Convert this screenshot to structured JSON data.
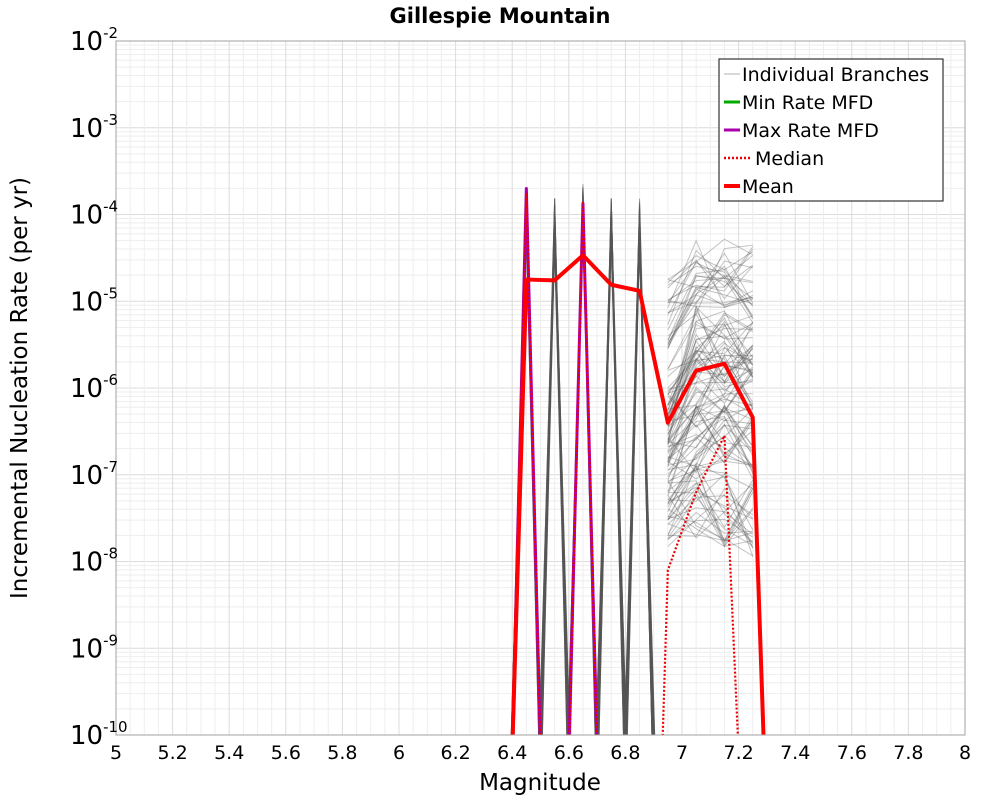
{
  "chart_data": {
    "type": "line",
    "title": "Gillespie Mountain",
    "xlabel": "Magnitude",
    "ylabel": "Incremental Nucleation Rate (per yr)",
    "xlim": [
      5,
      8
    ],
    "ylim_log10": [
      -10,
      -2
    ],
    "x_ticks": [
      {
        "value": 5.0,
        "label": "5"
      },
      {
        "value": 5.2,
        "label": "5.2"
      },
      {
        "value": 5.4,
        "label": "5.4"
      },
      {
        "value": 5.6,
        "label": "5.6"
      },
      {
        "value": 5.8,
        "label": "5.8"
      },
      {
        "value": 6.0,
        "label": "6"
      },
      {
        "value": 6.2,
        "label": "6.2"
      },
      {
        "value": 6.4,
        "label": "6.4"
      },
      {
        "value": 6.6,
        "label": "6.6"
      },
      {
        "value": 6.8,
        "label": "6.8"
      },
      {
        "value": 7.0,
        "label": "7"
      },
      {
        "value": 7.2,
        "label": "7.2"
      },
      {
        "value": 7.4,
        "label": "7.4"
      },
      {
        "value": 7.6,
        "label": "7.6"
      },
      {
        "value": 7.8,
        "label": "7.8"
      },
      {
        "value": 8.0,
        "label": "8"
      }
    ],
    "y_ticks": [
      {
        "exp": -2,
        "base": "10",
        "sup": "-2"
      },
      {
        "exp": -3,
        "base": "10",
        "sup": "-3"
      },
      {
        "exp": -4,
        "base": "10",
        "sup": "-4"
      },
      {
        "exp": -5,
        "base": "10",
        "sup": "-5"
      },
      {
        "exp": -6,
        "base": "10",
        "sup": "-6"
      },
      {
        "exp": -7,
        "base": "10",
        "sup": "-7"
      },
      {
        "exp": -8,
        "base": "10",
        "sup": "-8"
      },
      {
        "exp": -9,
        "base": "10",
        "sup": "-9"
      },
      {
        "exp": -10,
        "base": "10",
        "sup": "-10"
      }
    ],
    "grid": true,
    "legend": {
      "placement": "top-right",
      "entries": [
        {
          "label": "Individual Branches",
          "color": "#b0b0b0",
          "style": "thin"
        },
        {
          "label": "Min Rate MFD",
          "color": "#00aa00",
          "style": "solid"
        },
        {
          "label": "Max Rate MFD",
          "color": "#aa00aa",
          "style": "solid"
        },
        {
          "label": "Median",
          "color": "#ee0000",
          "style": "dotted"
        },
        {
          "label": "Mean",
          "color": "#ff0000",
          "style": "thick"
        }
      ]
    },
    "series": [
      {
        "name": "Individual Branches",
        "color": "#555555",
        "representative_curves_log10": [
          {
            "x": [
              6.4,
              6.45,
              6.5
            ],
            "y": [
              -10.2,
              -3.7,
              -10.2
            ]
          },
          {
            "x": [
              6.5,
              6.55,
              6.6
            ],
            "y": [
              -10.2,
              -3.8,
              -10.2
            ]
          },
          {
            "x": [
              6.6,
              6.65,
              6.7
            ],
            "y": [
              -10.2,
              -3.65,
              -10.2
            ]
          },
          {
            "x": [
              6.7,
              6.75,
              6.8
            ],
            "y": [
              -10.2,
              -3.8,
              -10.2
            ]
          },
          {
            "x": [
              6.8,
              6.85,
              6.9
            ],
            "y": [
              -10.2,
              -3.8,
              -10.2
            ]
          },
          {
            "x": [
              6.95,
              7.05,
              7.15,
              7.25
            ],
            "y": [
              -5.1,
              -4.7,
              -4.7,
              -4.8
            ]
          },
          {
            "x": [
              6.95,
              7.05,
              7.15,
              7.25
            ],
            "y": [
              -6.2,
              -5.5,
              -5.5,
              -5.5
            ]
          },
          {
            "x": [
              6.95,
              7.05,
              7.15,
              7.25
            ],
            "y": [
              -6.5,
              -6.0,
              -5.9,
              -5.9
            ]
          },
          {
            "x": [
              6.95,
              7.05,
              7.15,
              7.25
            ],
            "y": [
              -7.0,
              -6.6,
              -6.5,
              -6.6
            ]
          },
          {
            "x": [
              6.95,
              7.05,
              7.15,
              7.25
            ],
            "y": [
              -7.5,
              -7.3,
              -7.4,
              -7.5
            ]
          }
        ]
      },
      {
        "name": "Max Rate MFD",
        "color": "#aa00aa",
        "x": [
          6.4,
          6.45,
          6.5,
          6.6,
          6.65,
          6.7
        ],
        "log10_y": [
          -10.2,
          -3.7,
          -10.2,
          -10.2,
          -3.87,
          -10.2
        ]
      },
      {
        "name": "Median",
        "color": "#ee0000",
        "x": [
          6.4,
          6.45,
          6.5,
          6.6,
          6.65,
          6.7,
          6.93,
          6.95,
          7.05,
          7.15,
          7.2
        ],
        "log10_y": [
          -10.2,
          -3.75,
          -10.2,
          -10.2,
          -3.87,
          -10.2,
          -10.2,
          -8.1,
          -7.2,
          -6.55,
          -10.2
        ]
      },
      {
        "name": "Mean",
        "color": "#ff0000",
        "x": [
          6.4,
          6.45,
          6.55,
          6.65,
          6.75,
          6.85,
          6.95,
          7.05,
          7.15,
          7.25,
          7.29
        ],
        "log10_y": [
          -10.2,
          -4.75,
          -4.76,
          -4.47,
          -4.81,
          -4.88,
          -6.4,
          -5.8,
          -5.72,
          -6.34,
          -10.2
        ]
      }
    ]
  }
}
